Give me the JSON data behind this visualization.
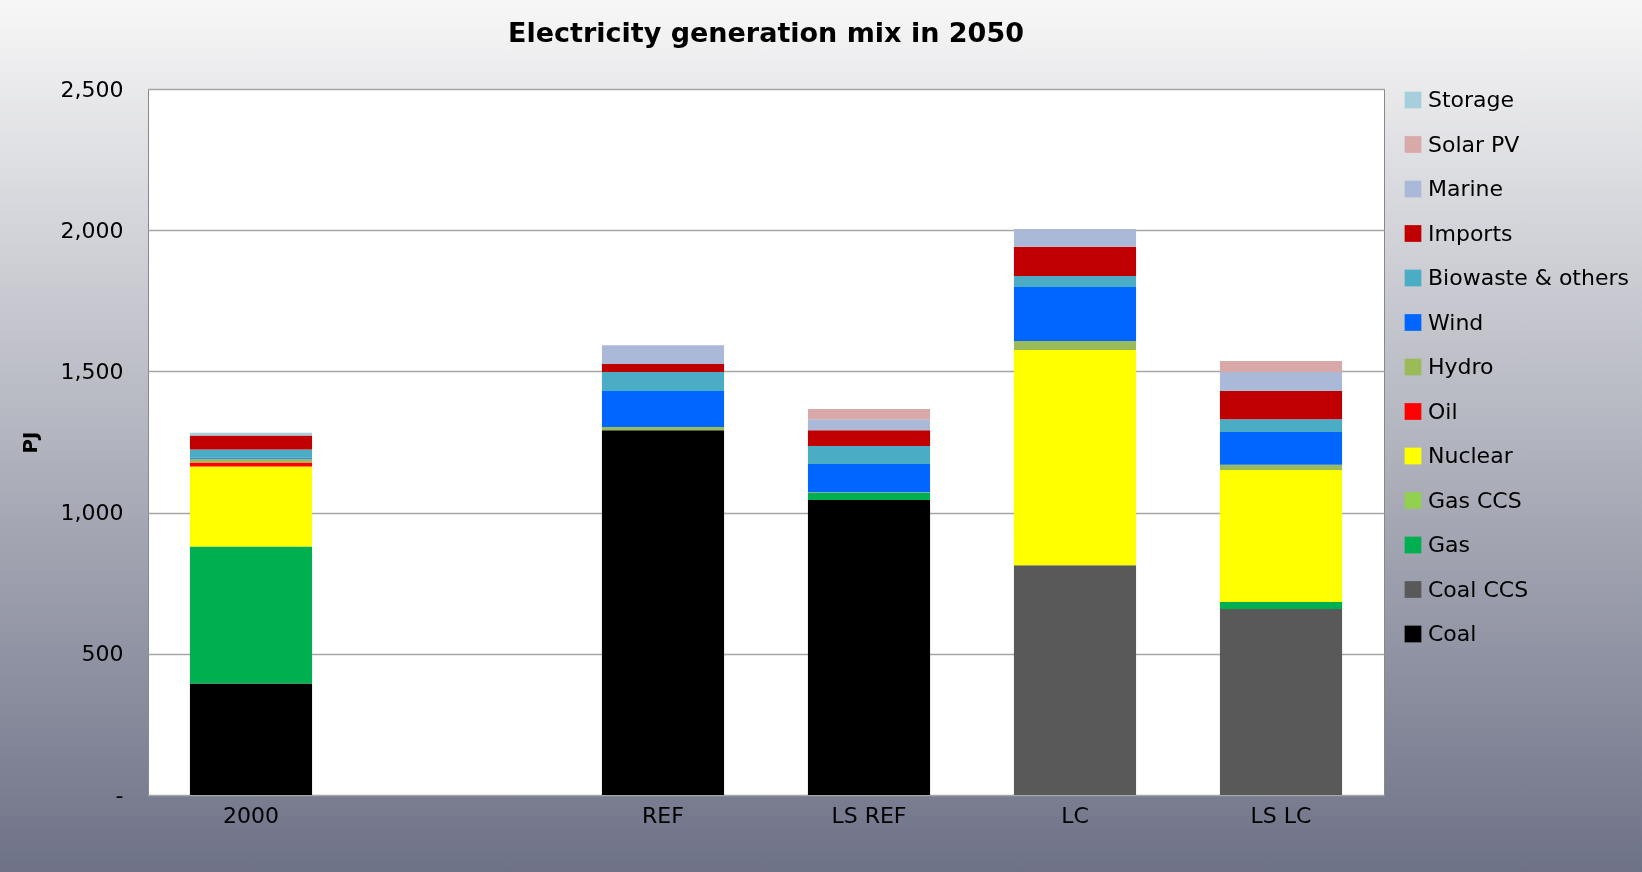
{
  "chart_data": {
    "type": "bar",
    "title": "Electricity generation mix in 2050",
    "ylabel": "PJ",
    "stacked": true,
    "categories": [
      "2000",
      null,
      "REF",
      "LS REF",
      "LC",
      "LS LC"
    ],
    "series": [
      {
        "name": "Coal",
        "color": "#000000",
        "values": [
          395,
          0,
          1292,
          1045,
          0,
          0
        ]
      },
      {
        "name": "Coal CCS",
        "color": "#595959",
        "values": [
          0,
          0,
          0,
          0,
          814,
          659
        ]
      },
      {
        "name": "Gas",
        "color": "#00b050",
        "values": [
          485,
          0,
          0,
          24,
          0,
          24
        ]
      },
      {
        "name": "Gas CCS",
        "color": "#92d050",
        "values": [
          0,
          0,
          0,
          0,
          0,
          0
        ]
      },
      {
        "name": "Nuclear",
        "color": "#ffff00",
        "values": [
          283,
          0,
          0,
          0,
          762,
          468
        ]
      },
      {
        "name": "Oil",
        "color": "#ff0000",
        "values": [
          14,
          0,
          0,
          0,
          0,
          0
        ]
      },
      {
        "name": "Hydro",
        "color": "#9bbb59",
        "values": [
          14,
          0,
          11,
          3,
          32,
          18
        ]
      },
      {
        "name": "Wind",
        "color": "#0066ff",
        "values": [
          4,
          0,
          128,
          100,
          191,
          116
        ]
      },
      {
        "name": "Biowaste & others",
        "color": "#4bacc6",
        "values": [
          28,
          0,
          67,
          64,
          39,
          46
        ]
      },
      {
        "name": "Imports",
        "color": "#c00000",
        "values": [
          50,
          0,
          28,
          56,
          103,
          100
        ]
      },
      {
        "name": "Marine",
        "color": "#aab9d8",
        "values": [
          0,
          0,
          67,
          39,
          63,
          67
        ]
      },
      {
        "name": "Solar PV",
        "color": "#d9a9a9",
        "values": [
          0,
          0,
          0,
          36,
          0,
          39
        ]
      },
      {
        "name": "Storage",
        "color": "#a5cfdc",
        "values": [
          10,
          0,
          0,
          0,
          0,
          0
        ]
      }
    ],
    "ylim": [
      0,
      2500
    ],
    "yticks": [
      {
        "value": 0,
        "label": "-"
      },
      {
        "value": 500,
        "label": "500"
      },
      {
        "value": 1000,
        "label": "1,000"
      },
      {
        "value": 1500,
        "label": "1,500"
      },
      {
        "value": 2000,
        "label": "2,000"
      },
      {
        "value": 2500,
        "label": "2,500"
      }
    ],
    "grid": "y",
    "legend": "right"
  }
}
